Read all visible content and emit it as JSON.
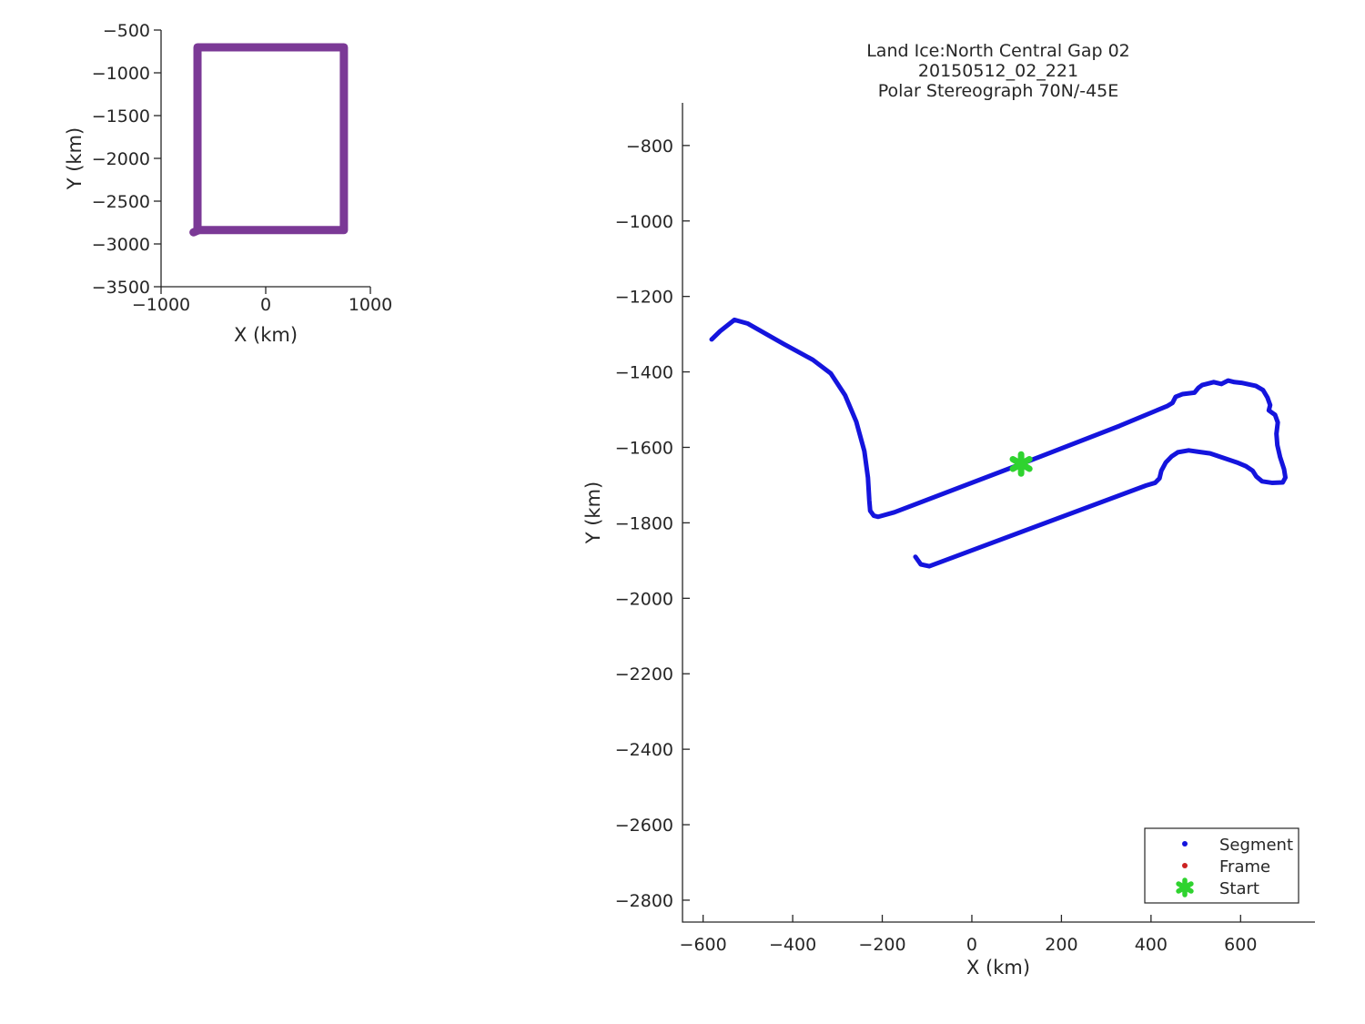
{
  "figure": {
    "background": "#ffffff",
    "axis_color": "#262626",
    "text_color": "#262626"
  },
  "chart_data": [
    {
      "type": "line",
      "name": "coverage-overview",
      "xlabel": "X (km)",
      "ylabel": "Y (km)",
      "xlim": [
        -1000,
        1000
      ],
      "ylim": [
        -3500,
        -500
      ],
      "xticks": [
        -1000,
        0,
        1000
      ],
      "yticks": [
        -3500,
        -3000,
        -2500,
        -2000,
        -1500,
        -1000,
        -500
      ],
      "grid": false,
      "tick_direction": "out",
      "series": [
        {
          "name": "coverage-boundary",
          "color": "#7b3996",
          "line_width": 9,
          "points": [
            [
              -652,
              -702
            ],
            [
              747,
              -702
            ],
            [
              747,
              -2838
            ],
            [
              -652,
              -2838
            ],
            [
              -652,
              -702
            ]
          ]
        },
        {
          "name": "boundary-corner-stub",
          "color": "#7b3996",
          "line_width": 9,
          "points": [
            [
              -690,
              -2864
            ],
            [
              -645,
              -2840
            ]
          ]
        }
      ]
    },
    {
      "type": "line",
      "name": "flight-trajectory",
      "title_lines": [
        "Land Ice:North Central Gap 02",
        "20150512_02_221",
        "Polar Stereograph 70N/-45E"
      ],
      "xlabel": "X (km)",
      "ylabel": "Y (km)",
      "xlim": [
        -646,
        766
      ],
      "ylim": [
        -2858,
        -687
      ],
      "xticks": [
        -600,
        -400,
        -200,
        0,
        200,
        400,
        600
      ],
      "yticks": [
        -2800,
        -2600,
        -2400,
        -2200,
        -2000,
        -1800,
        -1600,
        -1400,
        -1200,
        -1000,
        -800
      ],
      "grid": false,
      "tick_direction": "in",
      "series": [
        {
          "name": "segment-path",
          "color": "#1414dd",
          "line_width": 5,
          "points": [
            [
              -581,
              -1314
            ],
            [
              -562,
              -1292
            ],
            [
              -530,
              -1262
            ],
            [
              -500,
              -1272
            ],
            [
              -420,
              -1326
            ],
            [
              -355,
              -1368
            ],
            [
              -315,
              -1404
            ],
            [
              -283,
              -1462
            ],
            [
              -258,
              -1532
            ],
            [
              -240,
              -1610
            ],
            [
              -232,
              -1680
            ],
            [
              -229,
              -1740
            ],
            [
              -227,
              -1768
            ],
            [
              -219,
              -1781
            ],
            [
              -209,
              -1784
            ],
            [
              -173,
              -1772
            ],
            [
              110,
              -1644
            ],
            [
              330,
              -1543
            ],
            [
              437,
              -1490
            ],
            [
              448,
              -1482
            ],
            [
              455,
              -1466
            ],
            [
              470,
              -1459
            ],
            [
              497,
              -1455
            ],
            [
              506,
              -1442
            ],
            [
              514,
              -1435
            ],
            [
              540,
              -1427
            ],
            [
              557,
              -1432
            ],
            [
              572,
              -1423
            ],
            [
              586,
              -1427
            ],
            [
              602,
              -1429
            ],
            [
              634,
              -1437
            ],
            [
              650,
              -1448
            ],
            [
              660,
              -1468
            ],
            [
              666,
              -1488
            ],
            [
              663,
              -1502
            ],
            [
              677,
              -1514
            ],
            [
              683,
              -1534
            ],
            [
              680,
              -1564
            ],
            [
              682,
              -1594
            ],
            [
              688,
              -1625
            ],
            [
              697,
              -1658
            ],
            [
              700,
              -1680
            ],
            [
              694,
              -1693
            ],
            [
              670,
              -1694
            ],
            [
              648,
              -1690
            ],
            [
              635,
              -1677
            ],
            [
              627,
              -1662
            ],
            [
              612,
              -1650
            ],
            [
              592,
              -1640
            ],
            [
              562,
              -1628
            ],
            [
              532,
              -1616
            ],
            [
              508,
              -1612
            ],
            [
              484,
              -1608
            ],
            [
              460,
              -1613
            ],
            [
              446,
              -1624
            ],
            [
              433,
              -1640
            ],
            [
              423,
              -1662
            ],
            [
              419,
              -1682
            ],
            [
              409,
              -1694
            ],
            [
              389,
              -1701
            ],
            [
              -95,
              -1915
            ],
            [
              -114,
              -1910
            ],
            [
              -126,
              -1890
            ]
          ]
        }
      ],
      "start_marker": {
        "x": 110,
        "y": -1644,
        "color": "#2fd32f"
      },
      "legend": {
        "items": [
          {
            "label": "Segment",
            "marker": "dot",
            "color": "#1414dd"
          },
          {
            "label": "Frame",
            "marker": "dot",
            "color": "#cc2222"
          },
          {
            "label": "Start",
            "marker": "asterisk",
            "color": "#2fd32f"
          }
        ]
      }
    }
  ]
}
